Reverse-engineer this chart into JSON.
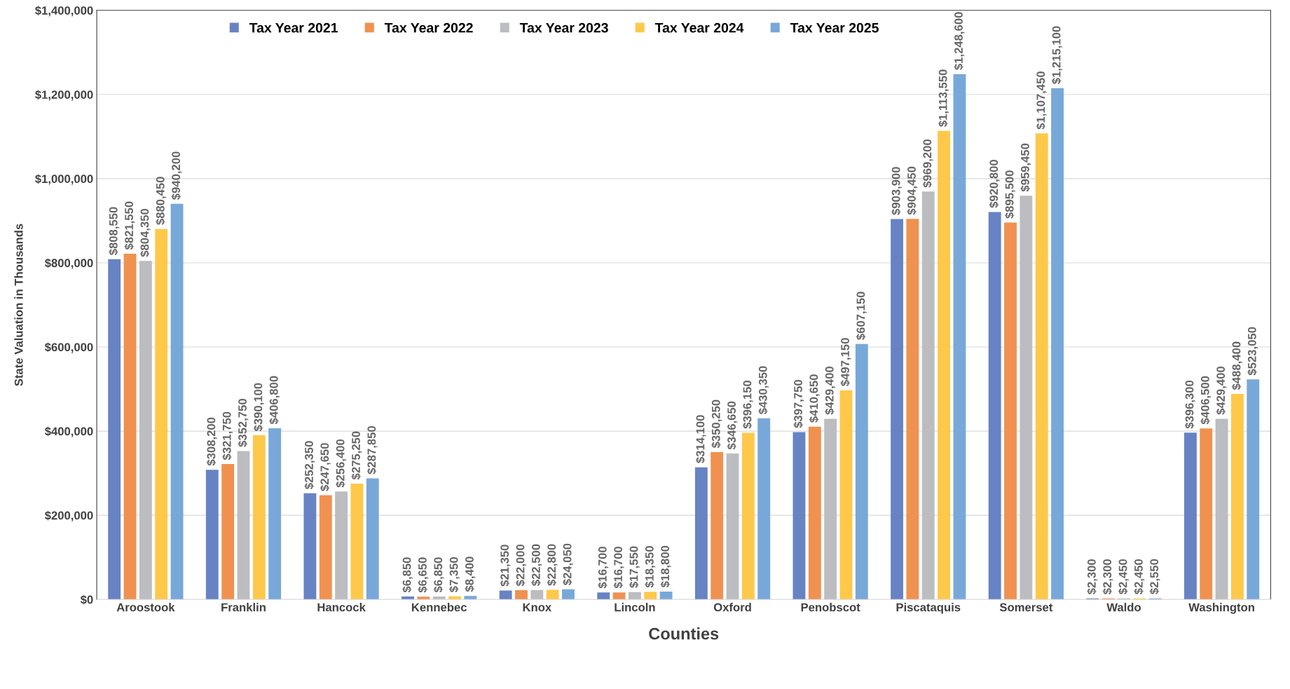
{
  "chart_data": {
    "type": "bar",
    "xlabel": "Counties",
    "ylabel": "State Valuation in Thousands",
    "categories": [
      "Aroostook",
      "Franklin",
      "Hancock",
      "Kennebec",
      "Knox",
      "Lincoln",
      "Oxford",
      "Penobscot",
      "Piscataquis",
      "Somerset",
      "Waldo",
      "Washington"
    ],
    "series": [
      {
        "name": "Tax Year 2021",
        "color": "#6783c3",
        "values": [
          808550,
          308200,
          252350,
          6850,
          21350,
          16700,
          314100,
          397750,
          903900,
          920800,
          2300,
          396300
        ],
        "value_labels": [
          "$808,550",
          "$308,200",
          "$252,350",
          "$6,850",
          "$21,350",
          "$16,700",
          "$314,100",
          "$397,750",
          "$903,900",
          "$920,800",
          "$2,300",
          "$396,300"
        ]
      },
      {
        "name": "Tax Year 2022",
        "color": "#f09150",
        "values": [
          821550,
          321750,
          247650,
          6650,
          22000,
          16700,
          350250,
          410650,
          904450,
          895500,
          2300,
          406500
        ],
        "value_labels": [
          "$821,550",
          "$321,750",
          "$247,650",
          "$6,650",
          "$22,000",
          "$16,700",
          "$350,250",
          "$410,650",
          "$904,450",
          "$895,500",
          "$2,300",
          "$406,500"
        ]
      },
      {
        "name": "Tax Year 2023",
        "color": "#bcbdc1",
        "values": [
          804350,
          352750,
          256400,
          6850,
          22500,
          17550,
          346650,
          429400,
          969200,
          959450,
          2450,
          429400
        ],
        "value_labels": [
          "$804,350",
          "$352,750",
          "$256,400",
          "$6,850",
          "$22,500",
          "$17,550",
          "$346,650",
          "$429,400",
          "$969,200",
          "$959,450",
          "$2,450",
          "$429,400"
        ]
      },
      {
        "name": "Tax Year 2024",
        "color": "#fec84a",
        "values": [
          880450,
          390100,
          275250,
          7350,
          22800,
          18350,
          396150,
          497150,
          1113550,
          1107450,
          2450,
          488400
        ],
        "value_labels": [
          "$880,450",
          "$390,100",
          "$275,250",
          "$7,350",
          "$22,800",
          "$18,350",
          "$396,150",
          "$497,150",
          "$1,113,550",
          "$1,107,450",
          "$2,450",
          "$488,400"
        ]
      },
      {
        "name": "Tax Year 2025",
        "color": "#78a8d9",
        "values": [
          940200,
          406800,
          287850,
          8400,
          24050,
          18800,
          430350,
          607150,
          1248600,
          1215100,
          2550,
          523050
        ],
        "value_labels": [
          "$940,200",
          "$406,800",
          "$287,850",
          "$8,400",
          "$24,050",
          "$18,800",
          "$430,350",
          "$607,150",
          "$1,248,600",
          "$1,215,100",
          "$2,550",
          "$523,050"
        ]
      }
    ],
    "ylim": [
      0,
      1400000
    ],
    "yticks": [
      {
        "value": 0,
        "label": "$0"
      },
      {
        "value": 200000,
        "label": "$200,000"
      },
      {
        "value": 400000,
        "label": "$400,000"
      },
      {
        "value": 600000,
        "label": "$600,000"
      },
      {
        "value": 800000,
        "label": "$800,000"
      },
      {
        "value": 1000000,
        "label": "$1,000,000"
      },
      {
        "value": 1200000,
        "label": "$1,200,000"
      },
      {
        "value": 1400000,
        "label": "$1,400,000"
      }
    ],
    "grid": "y",
    "legend": "top"
  }
}
